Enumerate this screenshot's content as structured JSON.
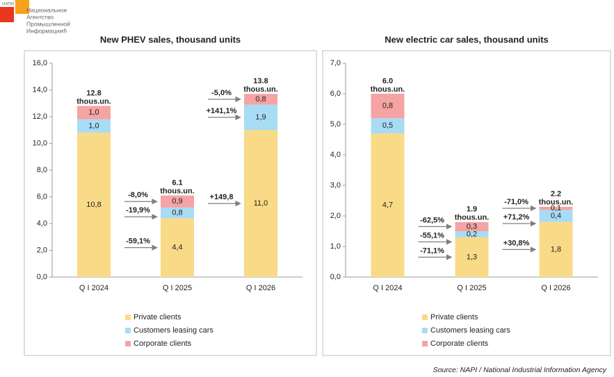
{
  "logo": {
    "abbr": "НАПИ",
    "lines": [
      "Национальное",
      "Агентство",
      "Промышленной",
      "Информации®"
    ]
  },
  "source": "Source: NAPI / National Industrial Information Agency",
  "chart_data": [
    {
      "type": "stacked_bar",
      "title": "New PHEV sales, thousand units",
      "categories": [
        "Q I 2024",
        "Q I 2025",
        "Q I 2026"
      ],
      "series": [
        {
          "name": "Private clients",
          "color": "#f9da87",
          "label_color": "#b8900a",
          "values": [
            10.8,
            4.4,
            11.0
          ],
          "value_labels": [
            "10,8",
            "4,4",
            "11,0"
          ],
          "change_labels": [
            null,
            "-59,1%",
            "+149,8"
          ]
        },
        {
          "name": "Customers leasing cars",
          "color": "#a8dcf4",
          "label_color": "#3a64a8",
          "values": [
            1.0,
            0.8,
            1.9
          ],
          "value_labels": [
            "1,0",
            "0,8",
            "1,9"
          ],
          "change_labels": [
            null,
            "-19,9%",
            "+141,1%"
          ]
        },
        {
          "name": "Corporate clients",
          "color": "#f5a3a3",
          "label_color": "#e46a6a",
          "values": [
            1.0,
            0.9,
            0.8
          ],
          "value_labels": [
            "1,0",
            "0,9",
            "0,8"
          ],
          "change_labels": [
            null,
            "-8,0%",
            "-5,0%"
          ]
        }
      ],
      "total_labels": [
        [
          "12.8",
          "thous.un."
        ],
        [
          "6.1",
          "thous.un."
        ],
        [
          "13.8",
          "thous.un."
        ]
      ],
      "ylim": [
        0,
        16
      ],
      "yticks": [
        {
          "value": 0,
          "label": "0,0"
        },
        {
          "value": 2,
          "label": "2,0"
        },
        {
          "value": 4,
          "label": "4,0"
        },
        {
          "value": 6,
          "label": "6,0"
        },
        {
          "value": 8,
          "label": "8,0"
        },
        {
          "value": 10,
          "label": "10,0"
        },
        {
          "value": 12,
          "label": "12,0"
        },
        {
          "value": 14,
          "label": "14,0"
        },
        {
          "value": 16,
          "label": "16,0"
        }
      ],
      "grid": false
    },
    {
      "type": "stacked_bar",
      "title": "New electric car sales, thousand units",
      "categories": [
        "Q I 2024",
        "Q I 2025",
        "Q I 2026"
      ],
      "series": [
        {
          "name": "Private clients",
          "color": "#f9da87",
          "label_color": "#b8900a",
          "values": [
            4.7,
            1.3,
            1.8
          ],
          "value_labels": [
            "4,7",
            "1,3",
            "1,8"
          ],
          "change_labels": [
            null,
            "-71,1%",
            "+30,8%"
          ]
        },
        {
          "name": "Customers leasing cars",
          "color": "#a8dcf4",
          "label_color": "#3a64a8",
          "values": [
            0.5,
            0.2,
            0.4
          ],
          "value_labels": [
            "0,5",
            "0,2",
            "0,4"
          ],
          "change_labels": [
            null,
            "-55,1%",
            "+71,2%"
          ]
        },
        {
          "name": "Corporate clients",
          "color": "#f5a3a3",
          "label_color": "#e46a6a",
          "values": [
            0.8,
            0.3,
            0.1
          ],
          "value_labels": [
            "0,8",
            "0,3",
            "0,1"
          ],
          "change_labels": [
            null,
            "-62,5%",
            "-71,0%"
          ]
        }
      ],
      "total_labels": [
        [
          "6.0",
          "thous.un."
        ],
        [
          "1.9",
          "thous.un."
        ],
        [
          "2.2",
          "thous.un."
        ]
      ],
      "ylim": [
        0,
        7
      ],
      "yticks": [
        {
          "value": 0,
          "label": "0,0"
        },
        {
          "value": 1,
          "label": "1,0"
        },
        {
          "value": 2,
          "label": "2,0"
        },
        {
          "value": 3,
          "label": "3,0"
        },
        {
          "value": 4,
          "label": "4,0"
        },
        {
          "value": 5,
          "label": "5,0"
        },
        {
          "value": 6,
          "label": "6,0"
        },
        {
          "value": 7,
          "label": "7,0"
        }
      ],
      "grid": false
    }
  ]
}
